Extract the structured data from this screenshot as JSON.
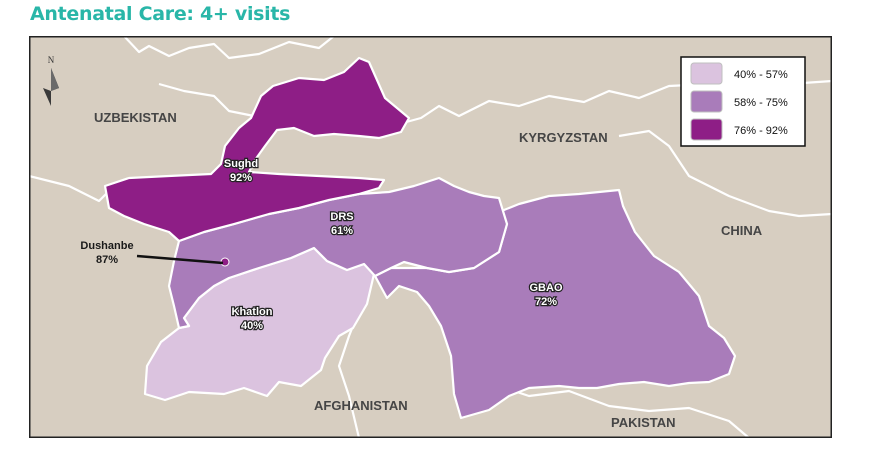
{
  "title": "Antenatal Care: 4+ visits",
  "map": {
    "north_label": "N",
    "countries": {
      "uzbekistan": "UZBEKISTAN",
      "kyrgyzstan": "KYRGYZSTAN",
      "china": "CHINA",
      "afghanistan": "AFGHANISTAN",
      "pakistan": "PAKISTAN"
    },
    "regions": {
      "sughd": {
        "name": "Sughd",
        "value": "92%",
        "category": "76% - 92%",
        "color": "#8e1e86"
      },
      "drs": {
        "name": "DRS",
        "value": "61%",
        "category": "58% - 75%",
        "color": "#a97cba"
      },
      "dushanbe": {
        "name": "Dushanbe",
        "value": "87%",
        "category": "76% - 92%",
        "color": "#8e1e86"
      },
      "khatlon": {
        "name": "Khatlon",
        "value": "40%",
        "category": "40% - 57%",
        "color": "#dbc3df"
      },
      "gbao": {
        "name": "GBAO",
        "value": "72%",
        "category": "58% - 75%",
        "color": "#a97cba"
      }
    },
    "legend": [
      {
        "label": "40% - 57%",
        "color": "#dbc3df"
      },
      {
        "label": "58% - 75%",
        "color": "#a97cba"
      },
      {
        "label": "76% - 92%",
        "color": "#8e1e86"
      }
    ],
    "colors": {
      "land": "#d7cec1",
      "border": "#ffffff",
      "title": "#29b6a8"
    }
  }
}
